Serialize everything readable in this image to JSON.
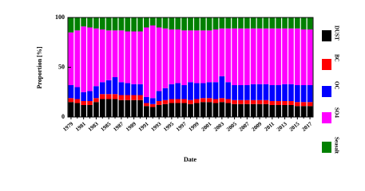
{
  "chart_data": {
    "type": "stacked_bar",
    "x_label": "Date",
    "y_label": "Proportion [%]",
    "categories": [
      "1979",
      null,
      "1981",
      null,
      "1983",
      null,
      "1985",
      null,
      "1987",
      null,
      "1989",
      null,
      "1991",
      null,
      "1993",
      null,
      "1995",
      null,
      "1997",
      null,
      "1999",
      null,
      "2001",
      null,
      "2003",
      null,
      "2005",
      null,
      "2007",
      null,
      "2009",
      null,
      "2011",
      null,
      "2013",
      null,
      "2015",
      null,
      "2017"
    ],
    "ylim": [
      0,
      100
    ],
    "yticks": [
      0,
      50,
      100
    ],
    "series": [
      {
        "name": "DUST",
        "color": "#000000",
        "values": [
          15,
          14,
          12,
          12,
          15,
          18,
          18,
          18,
          17,
          17,
          17,
          17,
          11,
          10,
          12,
          13,
          14,
          14,
          14,
          13,
          14,
          15,
          15,
          14,
          15,
          14,
          13,
          13,
          13,
          13,
          13,
          13,
          12,
          12,
          12,
          12,
          11,
          11,
          11
        ]
      },
      {
        "name": "BC",
        "color": "#ff0000",
        "values": [
          4,
          4,
          4,
          4,
          4,
          5,
          5,
          5,
          5,
          5,
          5,
          5,
          3,
          3,
          4,
          4,
          4,
          4,
          4,
          4,
          4,
          4,
          4,
          4,
          4,
          4,
          4,
          4,
          4,
          4,
          4,
          4,
          4,
          4,
          4,
          4,
          4,
          4,
          4
        ]
      },
      {
        "name": "OC",
        "color": "#0000ff",
        "values": [
          13,
          12,
          9,
          10,
          12,
          12,
          14,
          17,
          13,
          12,
          11,
          11,
          6,
          6,
          10,
          12,
          15,
          16,
          14,
          18,
          16,
          15,
          16,
          17,
          22,
          17,
          15,
          15,
          15,
          16,
          16,
          16,
          16,
          16,
          17,
          17,
          17,
          17,
          17
        ]
      },
      {
        "name": "SO4",
        "color": "#ff00ff",
        "values": [
          53,
          57,
          66,
          64,
          58,
          53,
          50,
          47,
          52,
          52,
          53,
          53,
          70,
          73,
          64,
          60,
          55,
          54,
          55,
          52,
          53,
          53,
          52,
          53,
          48,
          54,
          57,
          57,
          57,
          56,
          56,
          56,
          57,
          57,
          56,
          56,
          57,
          56,
          56
        ]
      },
      {
        "name": "Seasalt",
        "color": "#008000",
        "values": [
          15,
          13,
          9,
          10,
          11,
          12,
          13,
          13,
          13,
          14,
          14,
          14,
          10,
          8,
          10,
          11,
          12,
          12,
          13,
          13,
          13,
          13,
          13,
          12,
          11,
          11,
          11,
          11,
          11,
          11,
          11,
          11,
          11,
          11,
          11,
          11,
          11,
          12,
          12
        ]
      }
    ]
  }
}
